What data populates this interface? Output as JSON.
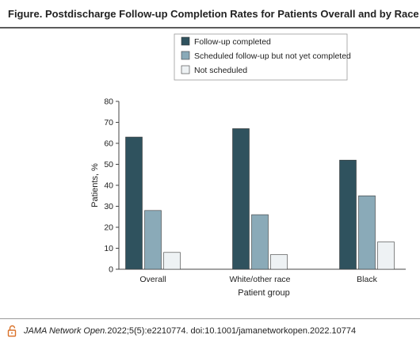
{
  "figure_title": "Figure. Postdischarge Follow-up Completion Rates for Patients Overall and by Race",
  "citation": {
    "journal": "JAMA Network Open.",
    "details": " 2022;5(5):e2210774. doi:10.1001/jamanetworkopen.2022.10774"
  },
  "colors": {
    "follow_up_completed": "#2f525e",
    "scheduled_not_completed": "#8aaab8",
    "not_scheduled": "#eef2f4",
    "lock_icon": "#d9722a"
  },
  "chart_data": {
    "type": "bar",
    "categories": [
      "Overall",
      "White/other race",
      "Black"
    ],
    "series": [
      {
        "name": "Follow-up completed",
        "values": [
          63,
          67,
          52
        ]
      },
      {
        "name": "Scheduled follow-up but not yet completed",
        "values": [
          28,
          26,
          35
        ]
      },
      {
        "name": "Not scheduled",
        "values": [
          8,
          7,
          13
        ]
      }
    ],
    "xlabel": "Patient group",
    "ylabel": "Patients, %",
    "ylim": [
      0,
      80
    ],
    "yticks": [
      0,
      10,
      20,
      30,
      40,
      50,
      60,
      70,
      80
    ],
    "grid": false,
    "legend_position": "top-center"
  }
}
